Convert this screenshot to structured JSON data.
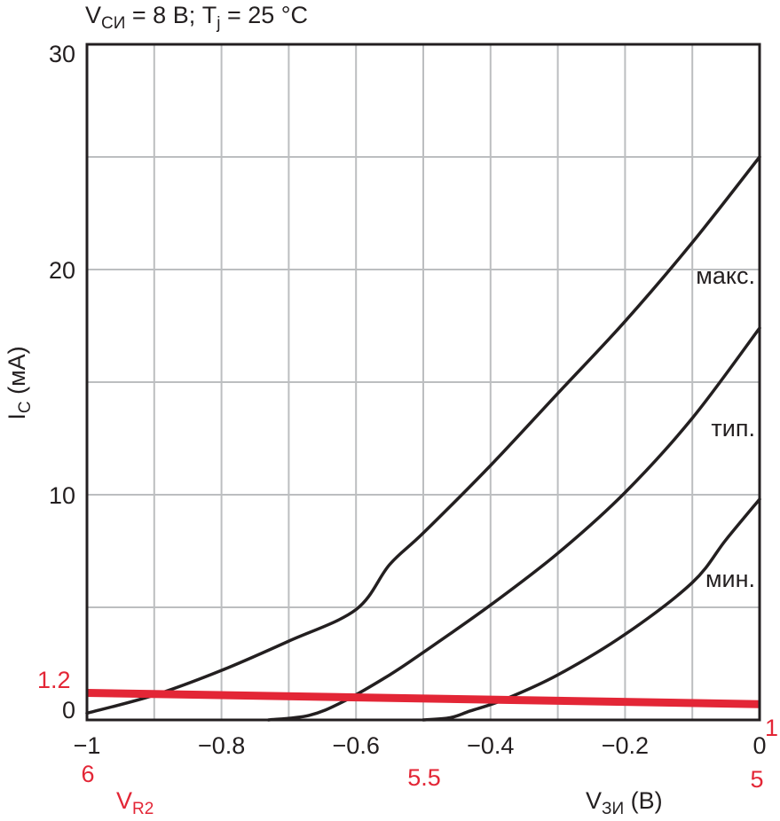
{
  "chart_data": {
    "type": "line",
    "title": {
      "v_main": "V",
      "v_sub": "СИ",
      "v_rest": " = 8 В; T",
      "t_sub": "j",
      "t_rest": " = 25 °C"
    },
    "ylabel": {
      "main": "I",
      "sub": "C",
      "rest": " (мА)"
    },
    "xlabel": {
      "main": "V",
      "sub": "ЗИ",
      "rest": " (В)"
    },
    "xlim": [
      -1,
      0
    ],
    "ylim": [
      0,
      30
    ],
    "x_ticks": [
      {
        "value": -1,
        "label": "−1"
      },
      {
        "value": -0.8,
        "label": "−0.8"
      },
      {
        "value": -0.6,
        "label": "−0.6"
      },
      {
        "value": -0.4,
        "label": "−0.4"
      },
      {
        "value": -0.2,
        "label": "−0.2"
      },
      {
        "value": 0,
        "label": "0"
      }
    ],
    "y_ticks": [
      {
        "value": 0,
        "label": "0"
      },
      {
        "value": 10,
        "label": "10"
      },
      {
        "value": 20,
        "label": "20"
      },
      {
        "value": 30,
        "label": "30"
      }
    ],
    "grid": true,
    "series": [
      {
        "name": "макс.",
        "color": "#231f20",
        "x": [
          -1,
          -0.9,
          -0.8,
          -0.7,
          -0.6,
          -0.55,
          -0.5,
          -0.4,
          -0.3,
          -0.2,
          -0.1,
          0
        ],
        "y": [
          0.3,
          1.1,
          2.2,
          3.5,
          4.9,
          6.9,
          8.3,
          11.3,
          14.5,
          17.7,
          21.2,
          25.0
        ]
      },
      {
        "name": "тип.",
        "color": "#231f20",
        "x": [
          -0.73,
          -0.67,
          -0.62,
          -0.55,
          -0.5,
          -0.4,
          -0.3,
          -0.2,
          -0.1,
          0
        ],
        "y": [
          0,
          0.2,
          0.8,
          2.0,
          3.0,
          5.1,
          7.4,
          10.1,
          13.4,
          17.4
        ]
      },
      {
        "name": "мин.",
        "color": "#231f20",
        "x": [
          -0.5,
          -0.46,
          -0.43,
          -0.38,
          -0.3,
          -0.2,
          -0.1,
          -0.05,
          0
        ],
        "y": [
          0,
          0.1,
          0.4,
          0.9,
          2.0,
          3.8,
          6.1,
          8.0,
          9.8
        ]
      }
    ],
    "annotations": {
      "series_labels": [
        {
          "text": "макс.",
          "color": "#231f20"
        },
        {
          "text": "тип.",
          "color": "#231f20"
        },
        {
          "text": "мин.",
          "color": "#231f20"
        }
      ],
      "load_line": {
        "color": "#e32636",
        "x": [
          -1,
          0
        ],
        "y": [
          1.2,
          0.7
        ],
        "start_label": "1.2",
        "end_label": "1"
      },
      "vr2_axis": {
        "color": "#e32636",
        "name_main": "V",
        "name_sub": "R2",
        "ticks": [
          {
            "at_x": -1,
            "label": "6"
          },
          {
            "at_x": -0.5,
            "label": "5.5"
          },
          {
            "at_x": 0,
            "label": "5"
          }
        ]
      }
    }
  }
}
